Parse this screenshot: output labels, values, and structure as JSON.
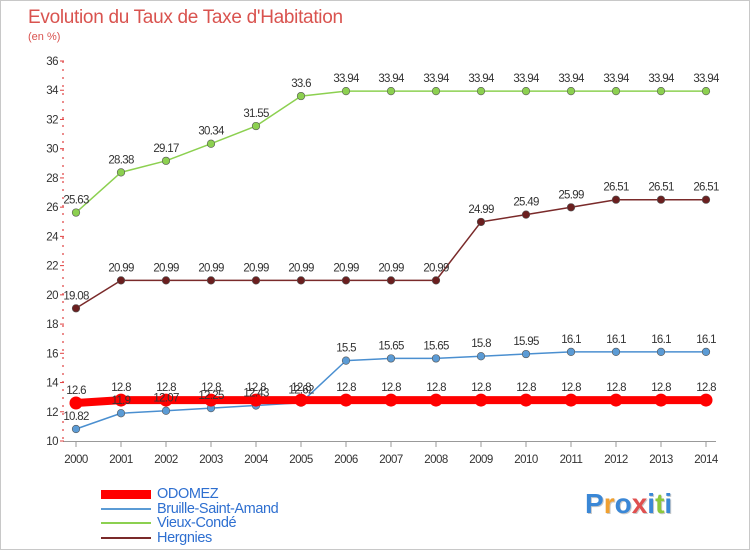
{
  "title": "Evolution du Taux de Taxe d'Habitation",
  "subtitle": "(en %)",
  "logo": {
    "text": "Proxiti",
    "letter_colors": [
      "#3a87d6",
      "#f0a030",
      "#3a87d6",
      "#e05050",
      "#3a87d6",
      "#8cc83c",
      "#3a87d6"
    ]
  },
  "chart_data": {
    "type": "line",
    "x": [
      "2000",
      "2001",
      "2002",
      "2003",
      "2004",
      "2005",
      "2006",
      "2007",
      "2008",
      "2009",
      "2010",
      "2011",
      "2012",
      "2013",
      "2014"
    ],
    "ylim": [
      10,
      36
    ],
    "yticks": [
      10,
      12,
      14,
      16,
      18,
      20,
      22,
      24,
      26,
      28,
      30,
      32,
      34,
      36
    ],
    "grid": false,
    "legend_position": "bottom-left",
    "series": [
      {
        "name": "ODOMEZ",
        "color": "#ff0000",
        "values": [
          12.6,
          12.8,
          12.8,
          12.8,
          12.8,
          12.8,
          12.8,
          12.8,
          12.8,
          12.8,
          12.8,
          12.8,
          12.8,
          12.8,
          12.8
        ],
        "labels": [
          "12.6",
          "12.8",
          "12.8",
          "12.8",
          "12.8",
          "12.8",
          "12.8",
          "12.8",
          "12.8",
          "12.8",
          "12.8",
          "12.8",
          "12.8",
          "12.8",
          "12.8"
        ]
      },
      {
        "name": "Bruille-Saint-Amand",
        "color": "#5b9bd5",
        "values": [
          10.82,
          11.9,
          12.07,
          12.25,
          12.43,
          12.62,
          15.5,
          15.65,
          15.65,
          15.8,
          15.95,
          16.1,
          16.1,
          16.1,
          16.1
        ],
        "labels": [
          "10.82",
          "11.9",
          "12.07",
          "12.25",
          "12.43",
          "12.62",
          "15.5",
          "15.65",
          "15.65",
          "15.8",
          "15.95",
          "16.1",
          "16.1",
          "16.1",
          "16.1"
        ]
      },
      {
        "name": "Vieux-Condé",
        "color": "#8cd050",
        "values": [
          25.63,
          28.38,
          29.17,
          30.34,
          31.55,
          33.6,
          33.94,
          33.94,
          33.94,
          33.94,
          33.94,
          33.94,
          33.94,
          33.94,
          33.94
        ],
        "labels": [
          "25.63",
          "28.38",
          "29.17",
          "30.34",
          "31.55",
          "33.6",
          "33.94",
          "33.94",
          "33.94",
          "33.94",
          "33.94",
          "33.94",
          "33.94",
          "33.94",
          "33.94"
        ]
      },
      {
        "name": "Hergnies",
        "color": "#7a2a2a",
        "values": [
          19.08,
          20.99,
          20.99,
          20.99,
          20.99,
          20.99,
          20.99,
          20.99,
          20.99,
          24.99,
          25.49,
          25.99,
          26.51,
          26.51,
          26.51
        ],
        "labels": [
          "19.08",
          "20.99",
          "20.99",
          "20.99",
          "20.99",
          "20.99",
          "20.99",
          "20.99",
          "20.99",
          "24.99",
          "25.49",
          "25.99",
          "26.51",
          "26.51",
          "26.51"
        ]
      }
    ]
  }
}
